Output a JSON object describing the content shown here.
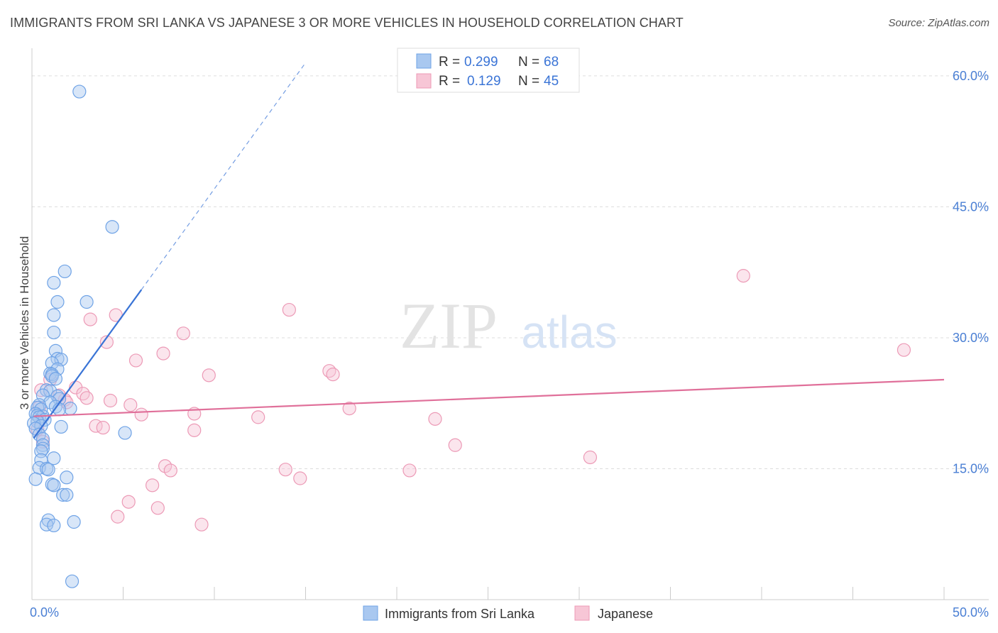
{
  "header": {
    "title": "IMMIGRANTS FROM SRI LANKA VS JAPANESE 3 OR MORE VEHICLES IN HOUSEHOLD CORRELATION CHART",
    "source": "Source: ZipAtlas.com"
  },
  "watermark": {
    "zip": "ZIP",
    "atlas": "atlas"
  },
  "colors": {
    "blue": "#6fa3e6",
    "blue_fill": "#a9c8f0",
    "blue_line": "#3a74d6",
    "pink": "#ec9ab6",
    "pink_fill": "#f7c6d6",
    "pink_line": "#e0709a",
    "axis_text": "#4a7fd4",
    "grid": "#dddddd"
  },
  "chart_data": {
    "type": "scatter",
    "title": "IMMIGRANTS FROM SRI LANKA VS JAPANESE 3 OR MORE VEHICLES IN HOUSEHOLD CORRELATION CHART",
    "xlabel": "",
    "ylabel": "3 or more Vehicles in Household",
    "xlim": [
      0,
      50
    ],
    "ylim": [
      0,
      63
    ],
    "x_tick_labels": {
      "min": "0.0%",
      "max": "50.0%"
    },
    "y_ticks": [
      15,
      30,
      45,
      60
    ],
    "y_tick_labels": [
      "15.0%",
      "30.0%",
      "45.0%",
      "60.0%"
    ],
    "legend_top": [
      {
        "r_label": "R =",
        "r_value": "0.299",
        "n_label": "N =",
        "n_value": "68"
      },
      {
        "r_label": "R =",
        "r_value": "0.129",
        "n_label": "N =",
        "n_value": "45"
      }
    ],
    "series": [
      {
        "name": "Immigrants from Sri Lanka",
        "trend": {
          "x0": 0.1,
          "y0": 18.5,
          "x1": 6.0,
          "y1": 35.5,
          "dash_x1": 15.0,
          "dash_y1": 61.5
        },
        "points": [
          [
            2.6,
            58.2
          ],
          [
            4.4,
            42.7
          ],
          [
            1.8,
            37.6
          ],
          [
            1.2,
            36.3
          ],
          [
            1.4,
            34.1
          ],
          [
            3.0,
            34.1
          ],
          [
            1.2,
            32.6
          ],
          [
            1.2,
            30.6
          ],
          [
            1.3,
            28.5
          ],
          [
            1.4,
            27.6
          ],
          [
            1.6,
            27.5
          ],
          [
            1.1,
            27.1
          ],
          [
            1.4,
            26.4
          ],
          [
            1.0,
            25.9
          ],
          [
            1.1,
            25.8
          ],
          [
            1.1,
            25.6
          ],
          [
            1.3,
            25.3
          ],
          [
            0.8,
            24.0
          ],
          [
            1.0,
            23.9
          ],
          [
            0.6,
            23.4
          ],
          [
            1.4,
            23.3
          ],
          [
            1.5,
            23.0
          ],
          [
            1.0,
            22.6
          ],
          [
            0.4,
            22.3
          ],
          [
            0.3,
            22.0
          ],
          [
            1.3,
            22.1
          ],
          [
            0.5,
            21.8
          ],
          [
            2.1,
            21.9
          ],
          [
            1.5,
            21.8
          ],
          [
            0.2,
            21.3
          ],
          [
            0.3,
            21.1
          ],
          [
            0.6,
            21.0
          ],
          [
            0.4,
            20.9
          ],
          [
            0.7,
            20.6
          ],
          [
            0.3,
            20.4
          ],
          [
            0.1,
            20.2
          ],
          [
            0.5,
            19.9
          ],
          [
            1.6,
            19.8
          ],
          [
            0.2,
            19.6
          ],
          [
            5.1,
            19.1
          ],
          [
            0.4,
            18.9
          ],
          [
            0.6,
            18.4
          ],
          [
            0.6,
            17.7
          ],
          [
            0.6,
            17.3
          ],
          [
            0.5,
            17.0
          ],
          [
            1.2,
            16.2
          ],
          [
            0.5,
            16.0
          ],
          [
            0.4,
            15.1
          ],
          [
            0.8,
            15.0
          ],
          [
            0.9,
            14.9
          ],
          [
            1.9,
            14.0
          ],
          [
            0.2,
            13.8
          ],
          [
            1.1,
            13.2
          ],
          [
            1.2,
            13.1
          ],
          [
            1.7,
            12.0
          ],
          [
            1.9,
            12.0
          ],
          [
            0.9,
            9.1
          ],
          [
            0.8,
            8.6
          ],
          [
            1.2,
            8.5
          ],
          [
            2.3,
            8.9
          ],
          [
            2.2,
            2.1
          ]
        ]
      },
      {
        "name": "Japanese",
        "trend": {
          "x0": 0.1,
          "y0": 21.0,
          "x1": 50.0,
          "y1": 25.2
        },
        "points": [
          [
            39.0,
            37.1
          ],
          [
            47.8,
            28.6
          ],
          [
            14.1,
            33.2
          ],
          [
            3.2,
            32.1
          ],
          [
            4.6,
            32.6
          ],
          [
            8.3,
            30.5
          ],
          [
            4.1,
            29.5
          ],
          [
            7.2,
            28.2
          ],
          [
            5.7,
            27.4
          ],
          [
            9.7,
            25.7
          ],
          [
            16.3,
            26.2
          ],
          [
            16.5,
            25.8
          ],
          [
            1.0,
            25.2
          ],
          [
            0.5,
            24.0
          ],
          [
            2.4,
            24.3
          ],
          [
            1.5,
            23.4
          ],
          [
            2.8,
            23.6
          ],
          [
            1.8,
            22.9
          ],
          [
            3.0,
            23.1
          ],
          [
            1.9,
            22.6
          ],
          [
            4.3,
            22.8
          ],
          [
            5.4,
            22.3
          ],
          [
            0.4,
            22.0
          ],
          [
            17.4,
            21.9
          ],
          [
            6.0,
            21.2
          ],
          [
            8.9,
            21.3
          ],
          [
            12.4,
            20.9
          ],
          [
            22.1,
            20.7
          ],
          [
            3.5,
            19.9
          ],
          [
            3.9,
            19.7
          ],
          [
            0.3,
            19.5
          ],
          [
            8.9,
            19.4
          ],
          [
            0.6,
            18.1
          ],
          [
            23.2,
            17.7
          ],
          [
            30.6,
            16.3
          ],
          [
            7.3,
            15.3
          ],
          [
            7.6,
            14.8
          ],
          [
            13.9,
            14.9
          ],
          [
            14.7,
            13.9
          ],
          [
            20.7,
            14.8
          ],
          [
            6.6,
            13.1
          ],
          [
            5.3,
            11.2
          ],
          [
            6.9,
            10.5
          ],
          [
            4.7,
            9.5
          ],
          [
            9.3,
            8.6
          ]
        ]
      }
    ],
    "legend_bottom": [
      "Immigrants from Sri Lanka",
      "Japanese"
    ]
  }
}
